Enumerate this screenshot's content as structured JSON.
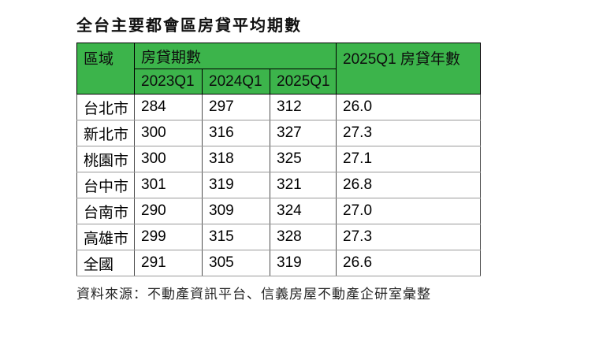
{
  "page": {
    "title": "全台主要都會區房貸平均期數",
    "source_note": "資料來源：不動產資訊平台、信義房屋不動產企研室彙整"
  },
  "colors": {
    "header_background": "#3cb44b",
    "header_text": "#0d0d0d",
    "body_text": "#000000",
    "grid_vertical": "#4d4d4d",
    "grid_horizontal": "#999999",
    "page_background": "#ffffff"
  },
  "table": {
    "header": {
      "region": "區域",
      "group": "房貸期數",
      "sub_2023": "2023Q1",
      "sub_2024": "2024Q1",
      "sub_2025": "2025Q1",
      "years": "2025Q1 房貸年數"
    },
    "rows": [
      {
        "region": "台北市",
        "v2023": "284",
        "v2024": "297",
        "v2025": "312",
        "years": "26.0"
      },
      {
        "region": "新北市",
        "v2023": "300",
        "v2024": "316",
        "v2025": "327",
        "years": "27.3"
      },
      {
        "region": "桃園市",
        "v2023": "300",
        "v2024": "318",
        "v2025": "325",
        "years": "27.1"
      },
      {
        "region": "台中市",
        "v2023": "301",
        "v2024": "319",
        "v2025": "321",
        "years": "26.8"
      },
      {
        "region": "台南市",
        "v2023": "290",
        "v2024": "309",
        "v2025": "324",
        "years": "27.0"
      },
      {
        "region": "高雄市",
        "v2023": "299",
        "v2024": "315",
        "v2025": "328",
        "years": "27.3"
      },
      {
        "region": "全國",
        "v2023": "291",
        "v2024": "305",
        "v2025": "319",
        "years": "26.6"
      }
    ]
  },
  "chart_data": {
    "type": "table",
    "title": "全台主要都會區房貸平均期數",
    "columns": [
      "區域",
      "房貸期數 2023Q1",
      "房貸期數 2024Q1",
      "房貸期數 2025Q1",
      "2025Q1 房貸年數"
    ],
    "rows": [
      [
        "台北市",
        284,
        297,
        312,
        26.0
      ],
      [
        "新北市",
        300,
        316,
        327,
        27.3
      ],
      [
        "桃園市",
        300,
        318,
        325,
        27.1
      ],
      [
        "台中市",
        301,
        319,
        321,
        26.8
      ],
      [
        "台南市",
        290,
        309,
        324,
        27.0
      ],
      [
        "高雄市",
        299,
        315,
        328,
        27.3
      ],
      [
        "全國",
        291,
        305,
        319,
        26.6
      ]
    ],
    "source": "資料來源：不動產資訊平台、信義房屋不動產企研室彙整",
    "header_background": "#3cb44b"
  }
}
